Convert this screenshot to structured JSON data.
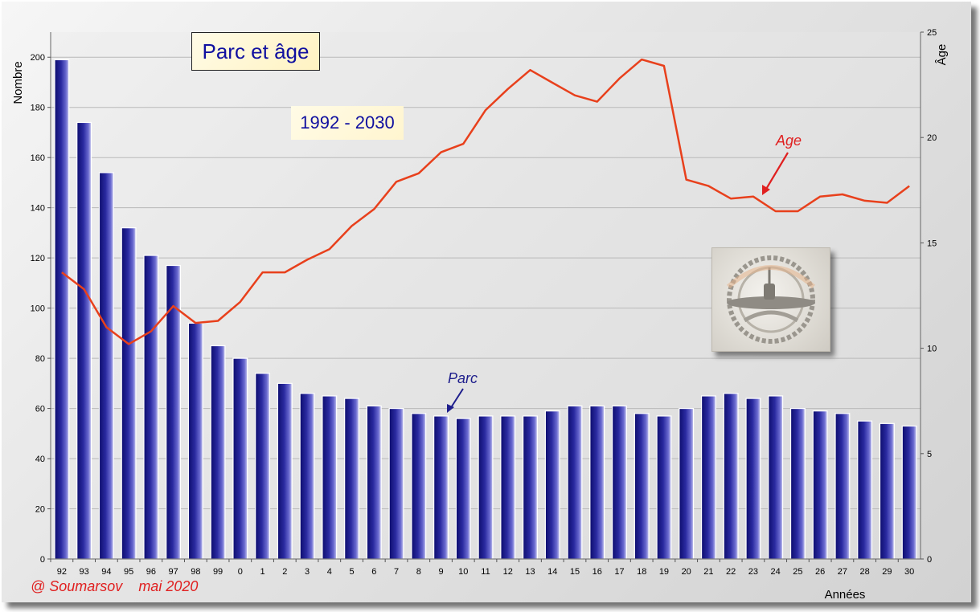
{
  "chart_data": {
    "type": "bar+line",
    "title": "Parc et âge",
    "subtitle": "1992 - 2030",
    "x_title": "Années",
    "y_left_title": "Nombre",
    "y_right_title": "Âge",
    "categories": [
      "92",
      "93",
      "94",
      "95",
      "96",
      "97",
      "98",
      "99",
      "0",
      "1",
      "2",
      "3",
      "4",
      "5",
      "6",
      "7",
      "8",
      "9",
      "10",
      "11",
      "12",
      "13",
      "14",
      "15",
      "16",
      "17",
      "18",
      "19",
      "20",
      "21",
      "22",
      "23",
      "24",
      "25",
      "26",
      "27",
      "28",
      "29",
      "30"
    ],
    "y_left_ticks": [
      "0",
      "20",
      "40",
      "60",
      "80",
      "100",
      "120",
      "140",
      "160",
      "180",
      "200"
    ],
    "y_right_ticks": [
      "0",
      "5",
      "10",
      "15",
      "20",
      "25"
    ],
    "y_left_range": [
      0,
      210
    ],
    "y_right_range": [
      0,
      25
    ],
    "grid": true,
    "series": [
      {
        "name": "Parc",
        "type": "bar",
        "axis": "left",
        "color": "#1e1e8c",
        "values": [
          199,
          174,
          154,
          132,
          121,
          117,
          94,
          85,
          80,
          74,
          70,
          66,
          65,
          64,
          61,
          60,
          58,
          57,
          56,
          57,
          57,
          57,
          59,
          61,
          61,
          61,
          58,
          57,
          60,
          65,
          66,
          64,
          65,
          60,
          59,
          58,
          55,
          54,
          53
        ]
      },
      {
        "name": "Age",
        "type": "line",
        "axis": "right",
        "color": "#e8401c",
        "values": [
          13.6,
          12.8,
          11.0,
          10.2,
          10.8,
          12.0,
          11.2,
          11.3,
          12.2,
          13.6,
          13.6,
          14.2,
          14.7,
          15.8,
          16.6,
          17.9,
          18.3,
          19.3,
          19.7,
          21.3,
          22.3,
          23.2,
          22.6,
          22.0,
          21.7,
          22.8,
          23.7,
          23.4,
          18.0,
          17.7,
          17.1,
          17.2,
          16.5,
          16.5,
          17.2,
          17.3,
          17.0,
          16.9,
          17.7
        ]
      }
    ],
    "annotations": [
      {
        "text": "Parc",
        "color": "#1e1e8c"
      },
      {
        "text": "Age",
        "color": "#e02020"
      }
    ]
  },
  "credit": "@ Soumarsov    mai 2020"
}
